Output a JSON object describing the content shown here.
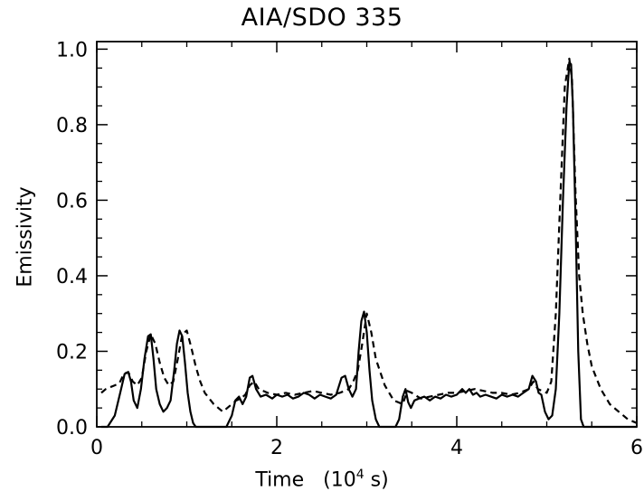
{
  "chart_data": {
    "type": "line",
    "title": "AIA/SDO 335",
    "xlabel": "Time",
    "xlabel_unit_prefix": "(10",
    "xlabel_unit_exp": "4",
    "xlabel_unit_suffix": " s)",
    "ylabel": "Emissivity",
    "xlim": [
      0,
      6
    ],
    "ylim": [
      0.0,
      1.02
    ],
    "x_ticks": [
      0,
      2,
      4,
      6
    ],
    "x_tick_labels": [
      "0",
      "2",
      "4",
      "6"
    ],
    "y_ticks": [
      0.0,
      0.2,
      0.4,
      0.6,
      0.8,
      1.0
    ],
    "y_tick_labels": [
      "0.0",
      "0.2",
      "0.4",
      "0.6",
      "0.8",
      "1.0"
    ],
    "grid": false,
    "series": [
      {
        "style": "solid",
        "color": "#000000",
        "x": [
          0.05,
          0.12,
          0.2,
          0.26,
          0.31,
          0.35,
          0.38,
          0.41,
          0.45,
          0.49,
          0.53,
          0.57,
          0.6,
          0.63,
          0.66,
          0.7,
          0.74,
          0.78,
          0.82,
          0.86,
          0.89,
          0.92,
          0.95,
          0.98,
          1.01,
          1.04,
          1.07,
          1.1,
          1.14,
          1.2,
          1.28,
          1.36,
          1.44,
          1.5,
          1.54,
          1.58,
          1.62,
          1.66,
          1.7,
          1.73,
          1.77,
          1.82,
          1.88,
          1.95,
          2.0,
          2.06,
          2.12,
          2.18,
          2.24,
          2.3,
          2.36,
          2.42,
          2.48,
          2.54,
          2.6,
          2.66,
          2.72,
          2.76,
          2.8,
          2.84,
          2.88,
          2.91,
          2.94,
          2.97,
          3.0,
          3.03,
          3.06,
          3.1,
          3.14,
          3.2,
          3.26,
          3.32,
          3.36,
          3.4,
          3.43,
          3.46,
          3.49,
          3.53,
          3.58,
          3.64,
          3.7,
          3.76,
          3.82,
          3.88,
          3.94,
          4.0,
          4.06,
          4.1,
          4.14,
          4.18,
          4.22,
          4.26,
          4.32,
          4.38,
          4.44,
          4.5,
          4.56,
          4.62,
          4.68,
          4.74,
          4.8,
          4.84,
          4.88,
          4.91,
          4.94,
          4.98,
          5.02,
          5.06,
          5.1,
          5.14,
          5.18,
          5.22,
          5.25,
          5.27,
          5.29,
          5.32,
          5.35,
          5.38,
          5.41,
          5.45,
          5.5,
          5.6,
          5.75,
          5.9,
          6.0
        ],
        "y": [
          0.0,
          0.0,
          0.03,
          0.09,
          0.14,
          0.145,
          0.12,
          0.07,
          0.05,
          0.1,
          0.18,
          0.24,
          0.245,
          0.18,
          0.1,
          0.06,
          0.04,
          0.05,
          0.07,
          0.15,
          0.22,
          0.255,
          0.24,
          0.17,
          0.09,
          0.04,
          0.01,
          0.0,
          0.0,
          0.0,
          0.0,
          0.0,
          0.0,
          0.03,
          0.07,
          0.08,
          0.06,
          0.08,
          0.13,
          0.135,
          0.1,
          0.08,
          0.085,
          0.075,
          0.085,
          0.08,
          0.085,
          0.075,
          0.08,
          0.09,
          0.085,
          0.075,
          0.085,
          0.08,
          0.075,
          0.085,
          0.13,
          0.135,
          0.1,
          0.08,
          0.1,
          0.2,
          0.28,
          0.305,
          0.25,
          0.15,
          0.07,
          0.02,
          0.0,
          0.0,
          0.0,
          0.0,
          0.02,
          0.08,
          0.1,
          0.065,
          0.05,
          0.07,
          0.075,
          0.08,
          0.07,
          0.08,
          0.075,
          0.085,
          0.08,
          0.085,
          0.1,
          0.09,
          0.1,
          0.085,
          0.09,
          0.08,
          0.085,
          0.08,
          0.075,
          0.085,
          0.08,
          0.085,
          0.08,
          0.09,
          0.1,
          0.135,
          0.12,
          0.09,
          0.085,
          0.04,
          0.02,
          0.03,
          0.1,
          0.3,
          0.6,
          0.85,
          0.965,
          0.96,
          0.85,
          0.55,
          0.2,
          0.02,
          0.0,
          0.0,
          0.0,
          0.0,
          0.0,
          0.0,
          0.0
        ]
      },
      {
        "style": "dashed",
        "color": "#000000",
        "x": [
          0.05,
          0.1,
          0.15,
          0.2,
          0.25,
          0.3,
          0.35,
          0.4,
          0.45,
          0.5,
          0.55,
          0.6,
          0.65,
          0.7,
          0.75,
          0.8,
          0.85,
          0.9,
          0.95,
          1.0,
          1.05,
          1.1,
          1.15,
          1.2,
          1.3,
          1.4,
          1.5,
          1.55,
          1.6,
          1.65,
          1.7,
          1.75,
          1.8,
          1.9,
          2.0,
          2.1,
          2.2,
          2.3,
          2.4,
          2.5,
          2.6,
          2.7,
          2.8,
          2.85,
          2.9,
          2.95,
          3.0,
          3.05,
          3.1,
          3.2,
          3.3,
          3.4,
          3.45,
          3.5,
          3.6,
          3.7,
          3.8,
          3.9,
          4.0,
          4.1,
          4.2,
          4.3,
          4.4,
          4.5,
          4.6,
          4.7,
          4.8,
          4.85,
          4.9,
          5.0,
          5.05,
          5.1,
          5.15,
          5.2,
          5.25,
          5.28,
          5.32,
          5.36,
          5.4,
          5.45,
          5.5,
          5.6,
          5.7,
          5.8,
          5.9,
          6.0
        ],
        "y": [
          0.09,
          0.1,
          0.105,
          0.11,
          0.115,
          0.14,
          0.145,
          0.12,
          0.11,
          0.13,
          0.2,
          0.245,
          0.22,
          0.17,
          0.13,
          0.11,
          0.12,
          0.18,
          0.245,
          0.255,
          0.21,
          0.16,
          0.12,
          0.09,
          0.06,
          0.04,
          0.06,
          0.07,
          0.075,
          0.085,
          0.11,
          0.12,
          0.1,
          0.09,
          0.085,
          0.09,
          0.085,
          0.09,
          0.095,
          0.09,
          0.085,
          0.09,
          0.1,
          0.12,
          0.15,
          0.22,
          0.3,
          0.25,
          0.18,
          0.11,
          0.07,
          0.06,
          0.095,
          0.09,
          0.075,
          0.08,
          0.085,
          0.09,
          0.09,
          0.095,
          0.1,
          0.095,
          0.09,
          0.09,
          0.085,
          0.09,
          0.1,
          0.12,
          0.1,
          0.09,
          0.12,
          0.3,
          0.6,
          0.9,
          0.975,
          0.92,
          0.62,
          0.4,
          0.3,
          0.22,
          0.16,
          0.1,
          0.06,
          0.04,
          0.02,
          0.01
        ]
      }
    ]
  }
}
